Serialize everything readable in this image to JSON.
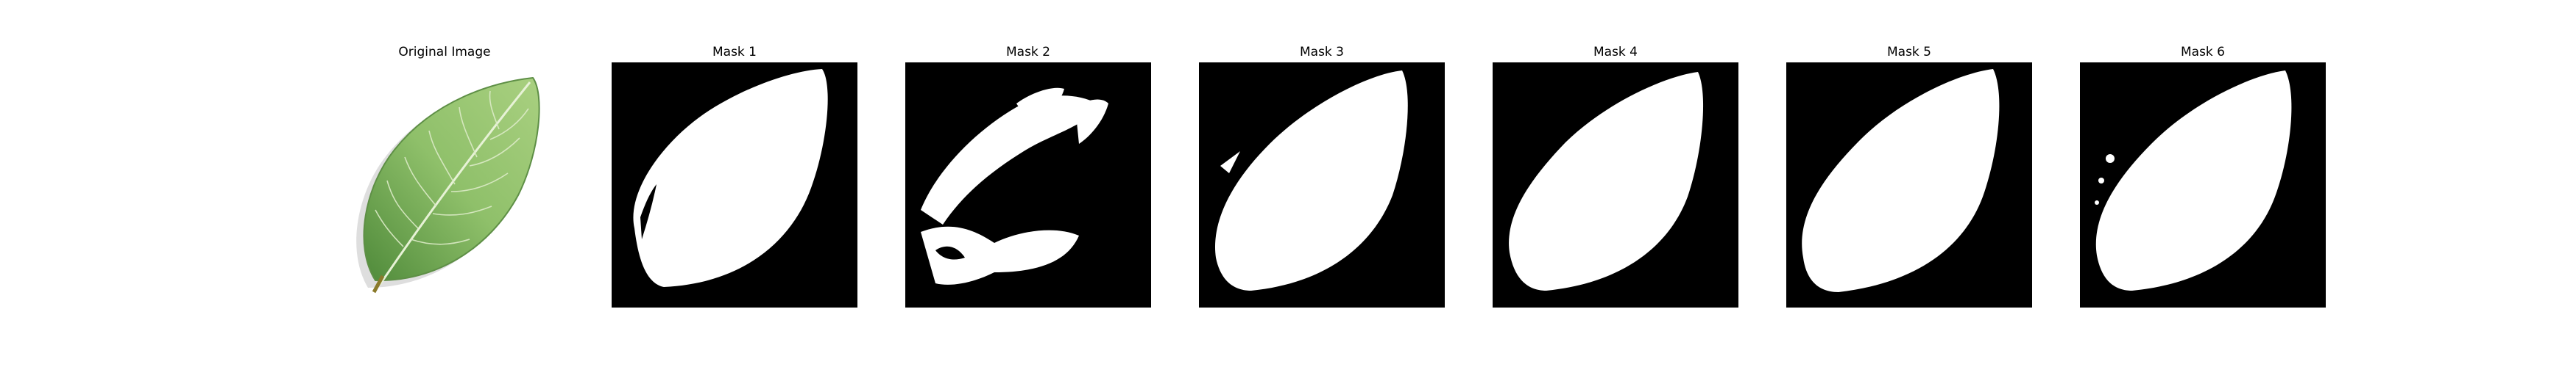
{
  "figure": {
    "original": {
      "title": "Original Image"
    },
    "masks": [
      {
        "title": "Mask 1"
      },
      {
        "title": "Mask 2"
      },
      {
        "title": "Mask 3"
      },
      {
        "title": "Mask 4"
      },
      {
        "title": "Mask 5"
      },
      {
        "title": "Mask 6"
      }
    ]
  },
  "colors": {
    "mask_background": "#000000",
    "mask_foreground": "#ffffff",
    "leaf_green": "#7fb35a"
  }
}
